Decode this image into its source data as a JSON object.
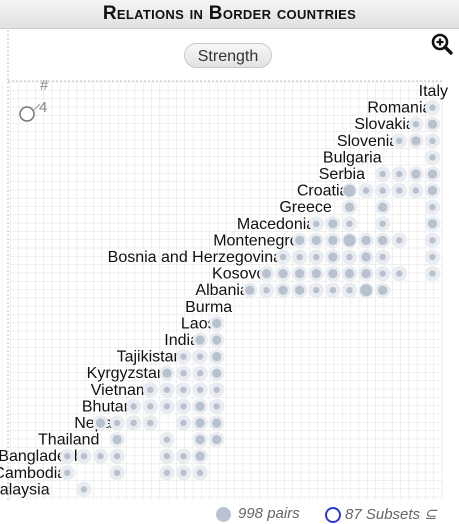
{
  "title": "Relations in Border countries",
  "strength_label": "Strength",
  "footer": {
    "pairs": "998 pairs",
    "subsets": "87 Subsets",
    "subset_symbol": "⊆"
  },
  "size_legend": {
    "label": "#",
    "value": "4"
  },
  "colors": {
    "dot": "#b8c2cf",
    "halo": "#e9ecf0",
    "grid": "#e6e6e6",
    "accent": "#2b3ad6"
  },
  "chart_data": {
    "type": "scatter",
    "countries": [
      "Italy",
      "Romania",
      "Slovakia",
      "Slovenia",
      "Bulgaria",
      "Serbia",
      "Croatia",
      "Greece",
      "Macedonia",
      "Montenegro",
      "Bosnia and Herzegovina",
      "Kosovo",
      "Albania",
      "Burma",
      "Laos",
      "India",
      "Tajikistan",
      "Kyrgyzstan",
      "Vietnam",
      "Bhutan",
      "Nepal",
      "Thailand",
      "Bangladesh",
      "Cambodia",
      "Malaysia"
    ],
    "cells": [
      [
        1,
        0,
        2
      ],
      [
        2,
        0,
        3
      ],
      [
        2,
        1,
        2
      ],
      [
        3,
        0,
        2
      ],
      [
        3,
        1,
        3
      ],
      [
        3,
        2,
        2
      ],
      [
        4,
        0,
        2
      ],
      [
        5,
        0,
        3
      ],
      [
        5,
        1,
        3
      ],
      [
        5,
        2,
        2
      ],
      [
        5,
        3,
        2
      ],
      [
        6,
        0,
        3
      ],
      [
        6,
        1,
        2
      ],
      [
        6,
        2,
        2
      ],
      [
        6,
        3,
        2
      ],
      [
        6,
        4,
        2
      ],
      [
        6,
        5,
        4
      ],
      [
        7,
        0,
        2
      ],
      [
        7,
        3,
        3
      ],
      [
        7,
        5,
        3
      ],
      [
        8,
        0,
        3
      ],
      [
        8,
        3,
        2
      ],
      [
        8,
        5,
        2
      ],
      [
        8,
        6,
        3
      ],
      [
        8,
        7,
        2
      ],
      [
        9,
        0,
        2
      ],
      [
        9,
        2,
        2
      ],
      [
        9,
        3,
        3
      ],
      [
        9,
        4,
        3
      ],
      [
        9,
        5,
        4
      ],
      [
        9,
        6,
        3
      ],
      [
        9,
        7,
        3
      ],
      [
        9,
        8,
        3
      ],
      [
        10,
        0,
        2
      ],
      [
        10,
        3,
        2
      ],
      [
        10,
        4,
        3
      ],
      [
        10,
        5,
        2
      ],
      [
        10,
        6,
        3
      ],
      [
        10,
        7,
        2
      ],
      [
        10,
        8,
        2
      ],
      [
        10,
        9,
        2
      ],
      [
        11,
        0,
        2
      ],
      [
        11,
        2,
        2
      ],
      [
        11,
        3,
        2
      ],
      [
        11,
        4,
        3
      ],
      [
        11,
        5,
        3
      ],
      [
        11,
        6,
        3
      ],
      [
        11,
        7,
        3
      ],
      [
        11,
        8,
        3
      ],
      [
        11,
        9,
        3
      ],
      [
        11,
        10,
        3
      ],
      [
        12,
        3,
        3
      ],
      [
        12,
        4,
        4
      ],
      [
        12,
        5,
        2
      ],
      [
        12,
        6,
        2
      ],
      [
        12,
        7,
        2
      ],
      [
        12,
        8,
        3
      ],
      [
        12,
        9,
        3
      ],
      [
        12,
        10,
        2
      ],
      [
        12,
        11,
        3
      ],
      [
        14,
        13,
        3
      ],
      [
        15,
        13,
        3
      ],
      [
        15,
        14,
        3
      ],
      [
        16,
        13,
        3
      ],
      [
        16,
        14,
        2
      ],
      [
        16,
        15,
        2
      ],
      [
        17,
        13,
        3
      ],
      [
        17,
        14,
        2
      ],
      [
        17,
        15,
        2
      ],
      [
        17,
        16,
        3
      ],
      [
        18,
        13,
        2
      ],
      [
        18,
        14,
        2
      ],
      [
        18,
        15,
        2
      ],
      [
        18,
        16,
        2
      ],
      [
        18,
        17,
        2
      ],
      [
        19,
        13,
        2
      ],
      [
        19,
        14,
        3
      ],
      [
        19,
        15,
        2
      ],
      [
        19,
        16,
        2
      ],
      [
        19,
        17,
        2
      ],
      [
        19,
        18,
        2
      ],
      [
        20,
        13,
        3
      ],
      [
        20,
        14,
        3
      ],
      [
        20,
        15,
        2
      ],
      [
        20,
        17,
        2
      ],
      [
        20,
        18,
        2
      ],
      [
        20,
        19,
        2
      ],
      [
        20,
        20,
        3
      ],
      [
        21,
        13,
        3
      ],
      [
        21,
        14,
        3
      ],
      [
        21,
        16,
        2
      ],
      [
        21,
        19,
        3
      ],
      [
        22,
        14,
        3
      ],
      [
        22,
        15,
        2
      ],
      [
        22,
        16,
        2
      ],
      [
        22,
        19,
        2
      ],
      [
        22,
        20,
        2
      ],
      [
        22,
        21,
        2
      ],
      [
        22,
        22,
        2
      ],
      [
        23,
        14,
        2
      ],
      [
        23,
        15,
        2
      ],
      [
        23,
        16,
        2
      ],
      [
        23,
        19,
        2
      ],
      [
        23,
        22,
        2
      ],
      [
        24,
        21,
        2
      ]
    ]
  }
}
